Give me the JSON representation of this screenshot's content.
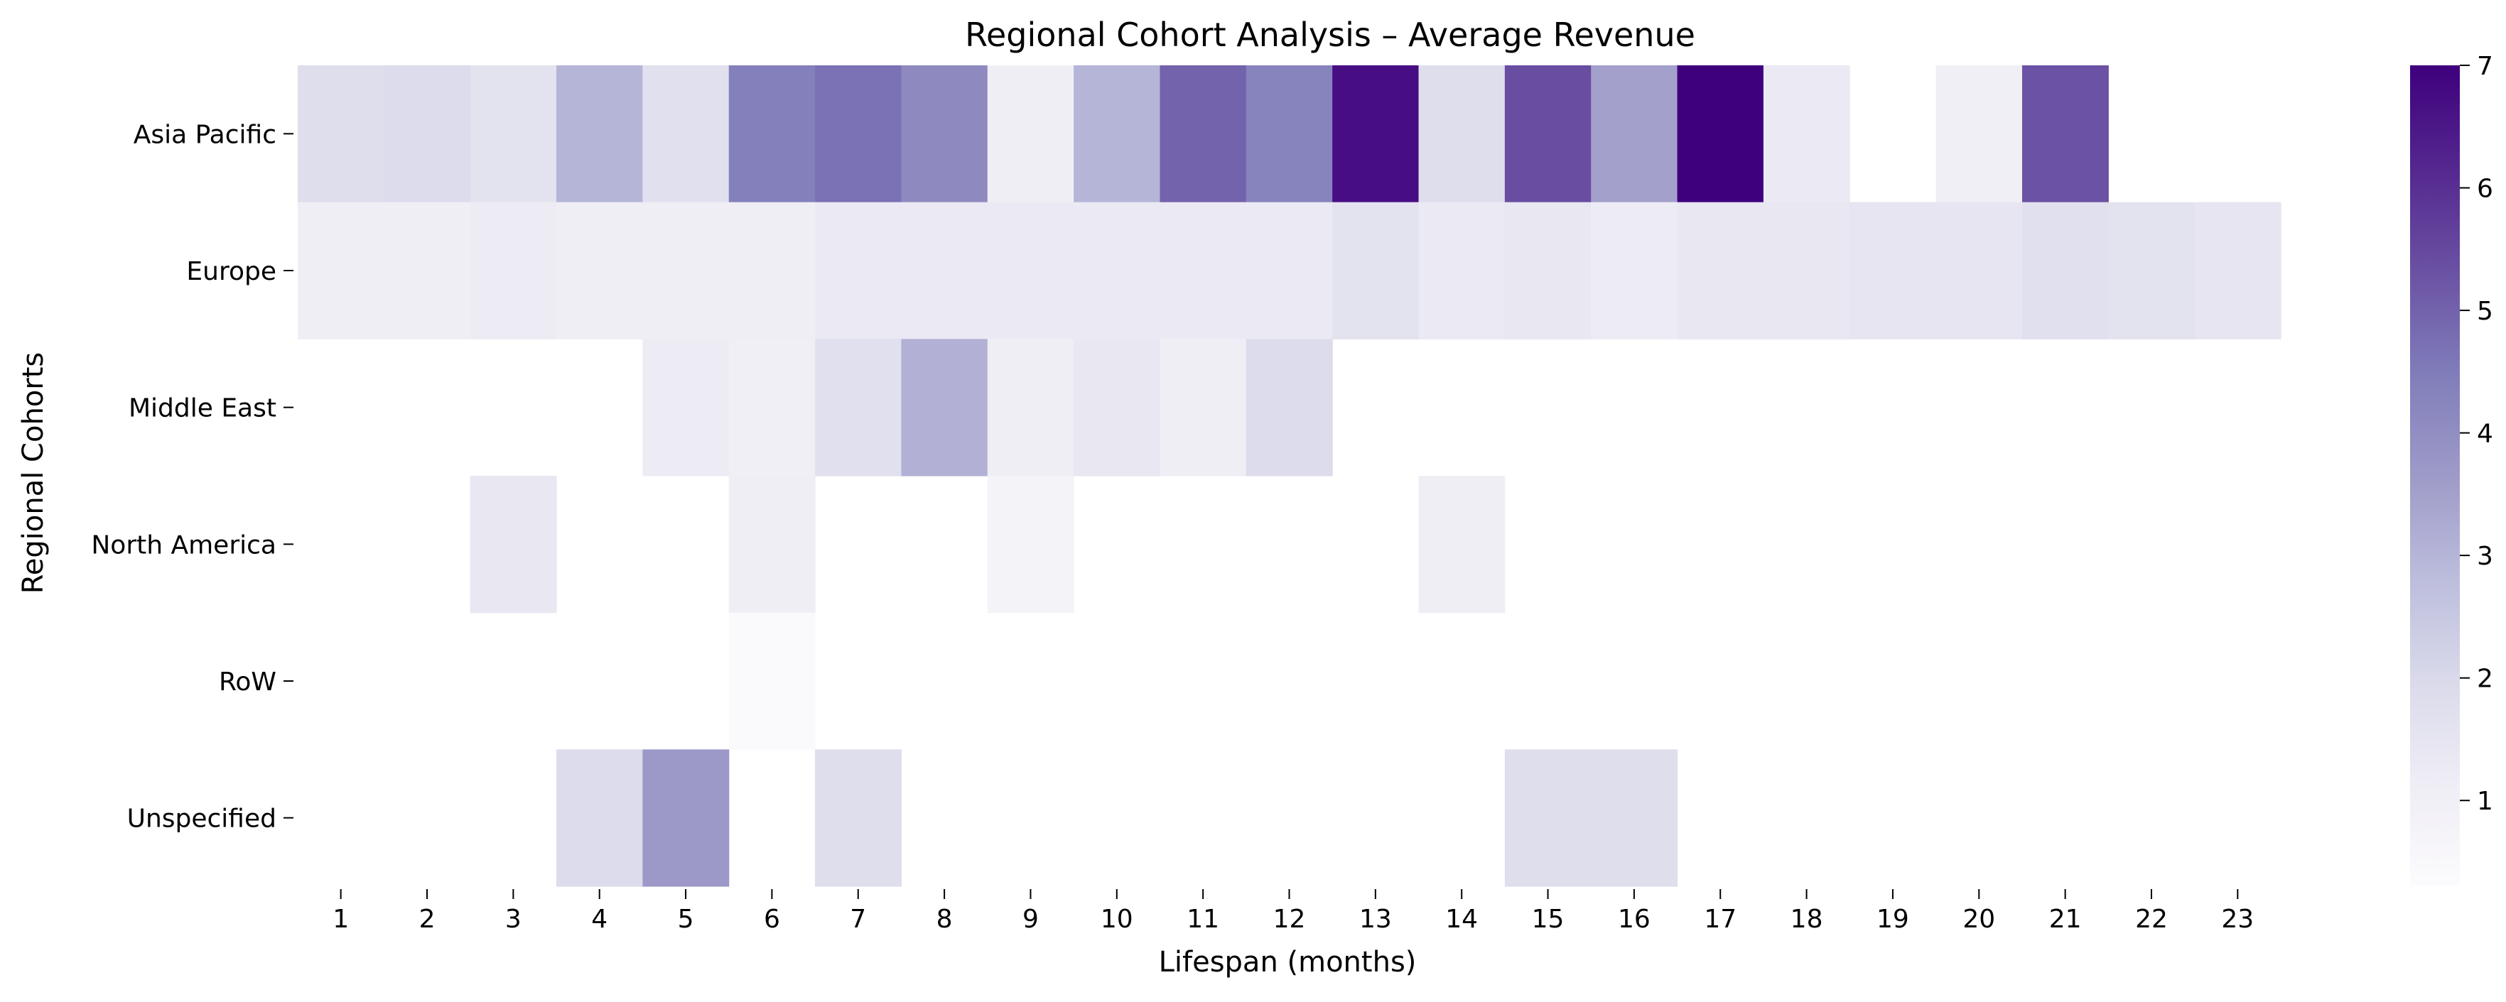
{
  "chart_data": {
    "type": "heatmap",
    "title": "Regional Cohort Analysis – Average Revenue",
    "xlabel": "Lifespan (months)",
    "ylabel": "Regional Cohorts",
    "x": [
      "1",
      "2",
      "3",
      "4",
      "5",
      "6",
      "7",
      "8",
      "9",
      "10",
      "11",
      "12",
      "13",
      "14",
      "15",
      "16",
      "17",
      "18",
      "19",
      "20",
      "21",
      "22",
      "23"
    ],
    "y": [
      "Asia Pacific",
      "Europe",
      "Middle East",
      "North America",
      "RoW",
      "Unspecified"
    ],
    "values": [
      [
        1.8,
        1.9,
        1.6,
        3.0,
        1.7,
        4.4,
        4.7,
        4.1,
        1.1,
        3.0,
        5.0,
        4.3,
        6.7,
        1.8,
        5.4,
        3.5,
        7.0,
        1.3,
        null,
        1.0,
        5.3,
        null,
        null
      ],
      [
        1.1,
        1.1,
        1.2,
        1.1,
        1.1,
        1.1,
        1.3,
        1.3,
        1.3,
        1.3,
        1.3,
        1.3,
        1.6,
        1.3,
        1.4,
        1.2,
        1.4,
        1.4,
        1.5,
        1.5,
        1.7,
        1.6,
        1.5
      ],
      [
        null,
        null,
        null,
        null,
        1.2,
        1.0,
        1.7,
        3.1,
        1.1,
        1.4,
        1.1,
        1.9,
        null,
        null,
        null,
        null,
        null,
        null,
        null,
        null,
        null,
        null,
        null
      ],
      [
        null,
        null,
        1.4,
        null,
        null,
        1.1,
        null,
        null,
        0.8,
        null,
        null,
        null,
        null,
        1.1,
        null,
        null,
        null,
        null,
        null,
        null,
        null,
        null,
        null
      ],
      [
        null,
        null,
        null,
        null,
        null,
        0.4,
        null,
        null,
        null,
        null,
        null,
        null,
        null,
        null,
        null,
        null,
        null,
        null,
        null,
        null,
        null,
        null,
        null
      ],
      [
        null,
        null,
        null,
        1.9,
        3.7,
        null,
        1.8,
        null,
        null,
        null,
        null,
        null,
        null,
        null,
        1.8,
        1.8,
        null,
        null,
        null,
        null,
        null,
        null,
        null
      ]
    ],
    "colormap": "Purples",
    "vmin": 0.3,
    "vmax": 7.0,
    "colorbar_ticks": [
      1,
      2,
      3,
      4,
      5,
      6,
      7
    ],
    "colors": {
      "low": "#fcfbfd",
      "high": "#3f007d"
    }
  }
}
